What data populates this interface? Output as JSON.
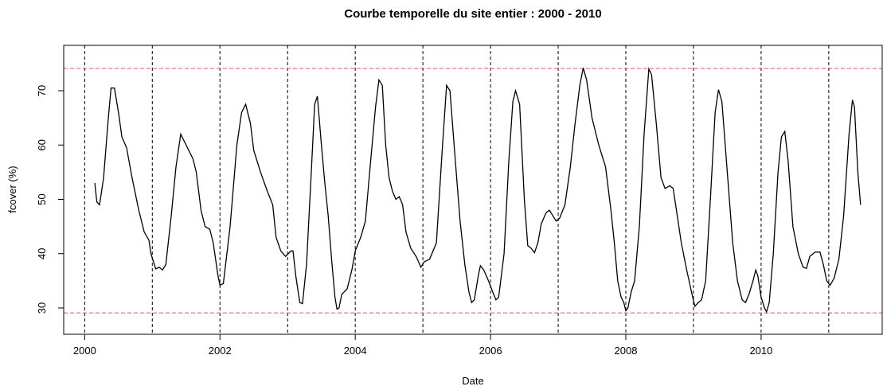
{
  "chart_data": {
    "type": "line",
    "title": "Courbe temporelle du site entier : 2000 - 2010",
    "x_label": "Date",
    "y_label": "fcover (%)",
    "xlim": [
      1999.69,
      2011.79
    ],
    "ylim": [
      25.16,
      78.35
    ],
    "xticks": [
      2000,
      2002,
      2004,
      2006,
      2008,
      2010
    ],
    "yticks": [
      30,
      40,
      50,
      60,
      70
    ],
    "vlines": [
      2000,
      2001,
      2002,
      2003,
      2004,
      2005,
      2006,
      2007,
      2008,
      2009,
      2010,
      2011
    ],
    "vline_color": "#000000",
    "hlines": [
      74.1,
      29.1
    ],
    "hline_color": "#df536b",
    "series": [
      {
        "name": "fcover",
        "color": "#000000",
        "x": [
          2000.15,
          2000.18,
          2000.22,
          2000.28,
          2000.35,
          2000.39,
          2000.44,
          2000.5,
          2000.55,
          2000.62,
          2000.7,
          2000.8,
          2000.88,
          2000.95,
          2000.98,
          2001.05,
          2001.1,
          2001.15,
          2001.2,
          2001.28,
          2001.35,
          2001.42,
          2001.5,
          2001.6,
          2001.65,
          2001.72,
          2001.78,
          2001.85,
          2001.9,
          2001.97,
          2002.0,
          2002.05,
          2002.15,
          2002.25,
          2002.32,
          2002.38,
          2002.45,
          2002.5,
          2002.6,
          2002.7,
          2002.78,
          2002.83,
          2002.9,
          2002.97,
          2003.05,
          2003.08,
          2003.12,
          2003.18,
          2003.22,
          2003.28,
          2003.35,
          2003.4,
          2003.44,
          2003.5,
          2003.55,
          2003.6,
          2003.65,
          2003.7,
          2003.73,
          2003.76,
          2003.8,
          2003.88,
          2003.95,
          2004.0,
          2004.08,
          2004.15,
          2004.22,
          2004.3,
          2004.35,
          2004.4,
          2004.45,
          2004.5,
          2004.55,
          2004.6,
          2004.65,
          2004.7,
          2004.75,
          2004.82,
          2004.9,
          2004.97,
          2005.02,
          2005.1,
          2005.15,
          2005.2,
          2005.28,
          2005.35,
          2005.4,
          2005.48,
          2005.55,
          2005.62,
          2005.68,
          2005.72,
          2005.76,
          2005.82,
          2005.85,
          2005.9,
          2005.97,
          2006.03,
          2006.08,
          2006.12,
          2006.2,
          2006.27,
          2006.33,
          2006.37,
          2006.43,
          2006.5,
          2006.55,
          2006.6,
          2006.65,
          2006.7,
          2006.75,
          2006.82,
          2006.87,
          2006.92,
          2006.97,
          2007.02,
          2007.1,
          2007.18,
          2007.25,
          2007.32,
          2007.37,
          2007.42,
          2007.5,
          2007.6,
          2007.7,
          2007.78,
          2007.83,
          2007.88,
          2007.93,
          2007.97,
          2008.0,
          2008.03,
          2008.08,
          2008.13,
          2008.2,
          2008.27,
          2008.34,
          2008.38,
          2008.45,
          2008.52,
          2008.58,
          2008.65,
          2008.7,
          2008.76,
          2008.82,
          2008.9,
          2008.97,
          2009.02,
          2009.07,
          2009.12,
          2009.18,
          2009.25,
          2009.32,
          2009.37,
          2009.42,
          2009.5,
          2009.58,
          2009.65,
          2009.72,
          2009.77,
          2009.82,
          2009.88,
          2009.92,
          2009.95,
          2010.0,
          2010.05,
          2010.08,
          2010.12,
          2010.18,
          2010.25,
          2010.3,
          2010.35,
          2010.4,
          2010.47,
          2010.55,
          2010.62,
          2010.67,
          2010.72,
          2010.8,
          2010.87,
          2010.92,
          2010.97,
          2011.02,
          2011.08,
          2011.15,
          2011.22,
          2011.3,
          2011.35,
          2011.38,
          2011.43,
          2011.47
        ],
        "values": [
          53,
          49.5,
          49,
          54,
          65,
          70.5,
          70.5,
          66,
          61.5,
          59.5,
          54,
          48,
          44,
          42.5,
          40,
          37.2,
          37.5,
          37,
          38,
          47,
          56,
          62,
          60,
          57.5,
          55,
          48,
          45,
          44.5,
          42,
          36,
          34.2,
          34.5,
          45,
          60,
          66,
          67.5,
          64,
          59,
          55,
          51.5,
          49,
          43,
          40.5,
          39.5,
          40.5,
          40.5,
          36,
          31,
          30.8,
          38,
          55,
          67.5,
          69,
          60,
          53,
          47,
          39,
          32,
          29.8,
          30,
          32.5,
          33.5,
          37,
          40.5,
          43,
          46,
          56,
          67,
          72,
          71,
          60,
          54,
          51.5,
          50,
          50.5,
          49,
          44,
          41,
          39.5,
          37.5,
          38.5,
          39,
          40.5,
          42,
          58,
          71,
          70,
          57,
          46,
          38,
          33,
          31,
          31.5,
          36,
          37.8,
          37,
          35,
          33,
          31.5,
          32,
          40,
          57,
          68,
          70,
          67.5,
          50,
          41.5,
          41,
          40.2,
          42,
          45.5,
          47.5,
          48,
          47,
          46,
          46.5,
          49,
          56,
          64,
          71,
          74.2,
          72,
          65,
          60,
          56,
          48,
          42,
          35,
          32,
          31,
          29.5,
          30,
          33,
          35,
          45,
          62,
          74,
          73,
          64,
          54,
          52,
          52.5,
          52,
          47,
          42,
          37,
          33,
          30.3,
          31,
          31.5,
          35,
          50,
          66,
          70.2,
          68,
          55,
          42,
          35,
          31.5,
          31,
          32.5,
          35,
          37,
          36,
          32,
          30,
          29.3,
          31,
          40,
          55,
          61.5,
          62.5,
          57,
          45,
          40,
          37.5,
          37.3,
          39.5,
          40.3,
          40.3,
          38,
          35,
          34.2,
          35.5,
          39,
          47,
          62,
          68.3,
          67,
          55,
          49
        ]
      }
    ]
  }
}
